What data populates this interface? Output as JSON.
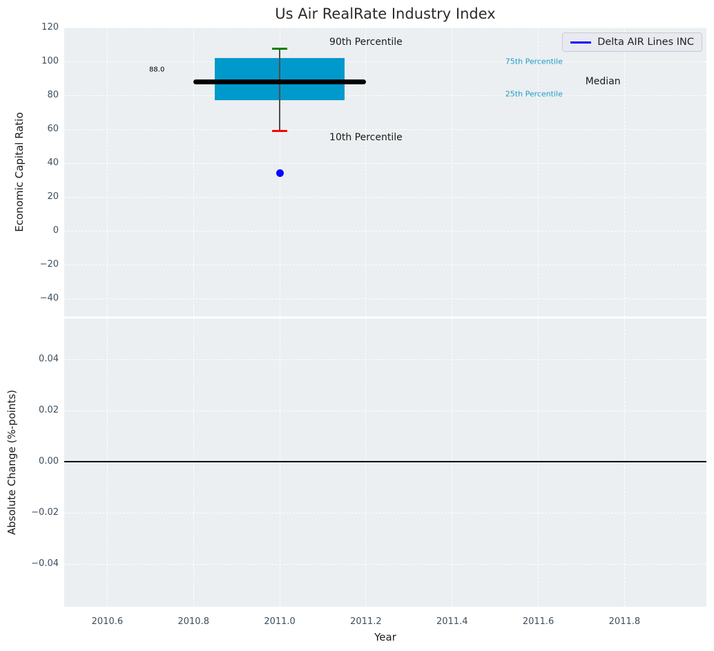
{
  "colors": {
    "axes_background": "#ebeff1",
    "grid": "#ffffff",
    "tick_label": "#3d4e5c",
    "box_fill": "#0099cc",
    "percentile_label": "#1f9acc",
    "series_blue": "#0000ff"
  },
  "chart_data": [
    {
      "type": "boxplot",
      "title": "Us Air RealRate Industry Index",
      "ylabel": "Economic Capital Ratio",
      "xlabel": "",
      "xlim": [
        2010.5,
        2011.99
      ],
      "ylim": [
        -50.6,
        120
      ],
      "grid": true,
      "x_ticks": [
        2010.6,
        2010.8,
        2011.0,
        2011.2,
        2011.4,
        2011.6,
        2011.8
      ],
      "x_tick_labels_visible": false,
      "y_ticks": [
        120,
        100,
        80,
        60,
        40,
        20,
        0,
        -20,
        -40
      ],
      "y_tick_labels": [
        "120",
        "100",
        "80",
        "60",
        "40",
        "20",
        "0",
        "−20",
        "−40"
      ],
      "legend": {
        "position": "upper right",
        "entries": [
          {
            "label": "Delta AIR Lines INC",
            "color": "#0000ff",
            "marker": "line"
          }
        ]
      },
      "boxplot": {
        "x": 2011.0,
        "median": 88.0,
        "q1": 77,
        "q3": 102,
        "whisker_low": 59,
        "whisker_high": 107.5,
        "box_width": 0.3,
        "median_line_width": 0.4,
        "box_color": "#0099cc",
        "median_color": "#000000",
        "whisker_color": "#4d4d4d",
        "cap_high_color": "#008000",
        "cap_low_color": "#ff0000"
      },
      "points": [
        {
          "x": 2011.0,
          "y": 34,
          "color": "#0808ff",
          "series": "Delta AIR Lines INC"
        }
      ],
      "annotations": [
        {
          "text": "88.0",
          "x": 2010.715,
          "y": 95,
          "color": "#000000",
          "size": 10
        },
        {
          "text": "90th Percentile",
          "x": 2011.2,
          "y": 111.5,
          "color": "#1a1a1a",
          "size": 14
        },
        {
          "text": "10th Percentile",
          "x": 2011.2,
          "y": 55,
          "color": "#1a1a1a",
          "size": 14
        },
        {
          "text": "75th Percentile",
          "x": 2011.59,
          "y": 100,
          "color": "#1f9acc",
          "size": 11
        },
        {
          "text": "25th Percentile",
          "x": 2011.59,
          "y": 81,
          "color": "#1f9acc",
          "size": 11
        },
        {
          "text": "Median",
          "x": 2011.75,
          "y": 88,
          "color": "#1a1a1a",
          "size": 14
        }
      ]
    },
    {
      "type": "line",
      "title": "",
      "ylabel": "Absolute Change (%-points)",
      "xlabel": "Year",
      "xlim": [
        2010.5,
        2011.99
      ],
      "ylim": [
        -0.0567,
        0.056
      ],
      "grid": true,
      "x_ticks": [
        2010.6,
        2010.8,
        2011.0,
        2011.2,
        2011.4,
        2011.6,
        2011.8
      ],
      "x_tick_labels": [
        "2010.6",
        "2010.8",
        "2011.0",
        "2011.2",
        "2011.4",
        "2011.6",
        "2011.8"
      ],
      "y_ticks": [
        0.04,
        0.02,
        0.0,
        -0.02,
        -0.04
      ],
      "y_tick_labels": [
        "0.04",
        "0.02",
        "0.00",
        "−0.02",
        "−0.04"
      ],
      "hline": {
        "y": 0.0,
        "color": "#000000"
      },
      "series": []
    }
  ]
}
